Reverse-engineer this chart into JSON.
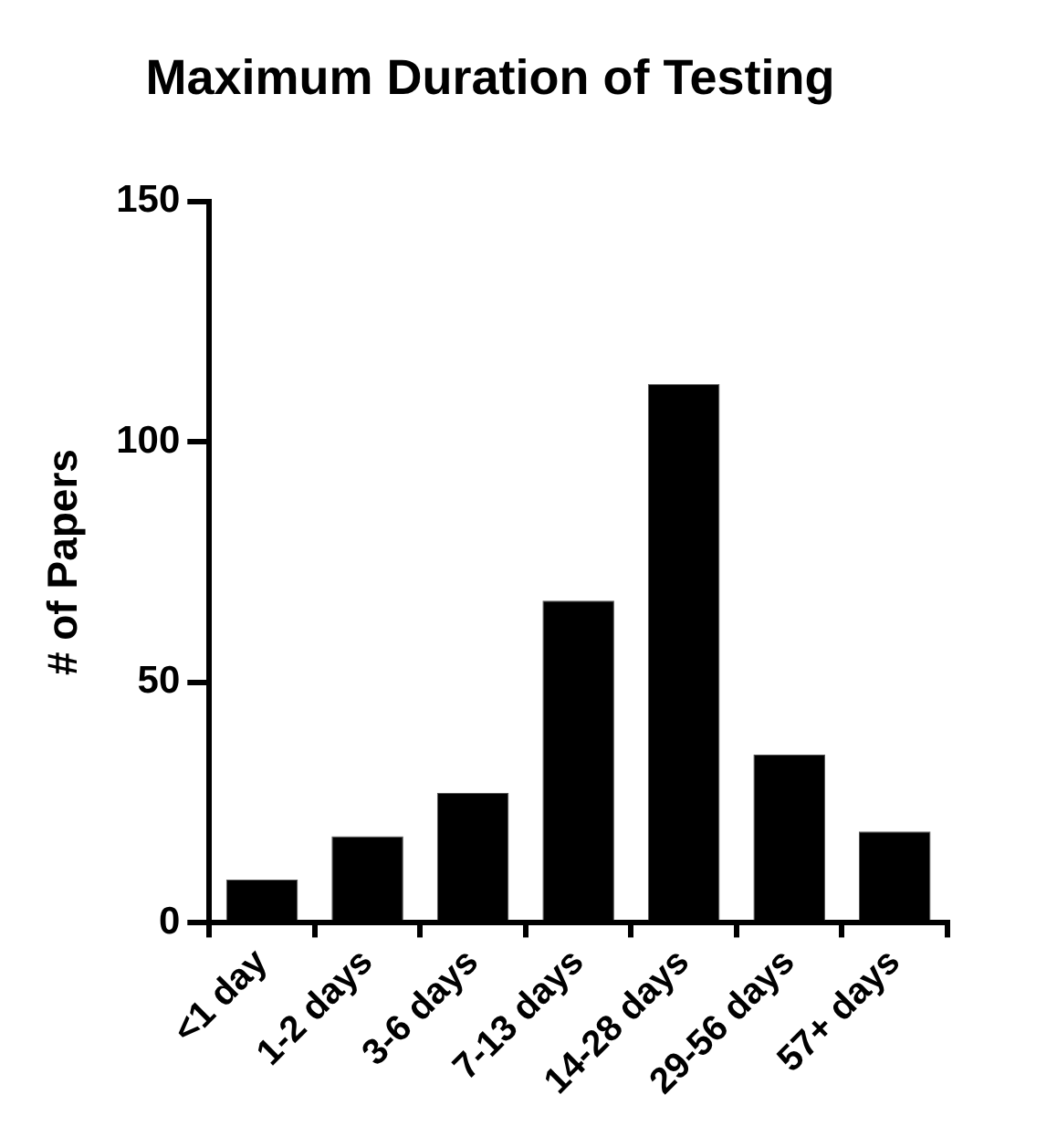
{
  "chart_data": {
    "type": "bar",
    "title": "Maximum Duration of Testing",
    "ylabel": "# of Papers",
    "categories": [
      "<1 day",
      "1-2 days",
      "3-6 days",
      "7-13 days",
      "14-28 days",
      "29-56 days",
      "57+ days"
    ],
    "values": [
      9,
      18,
      27,
      67,
      112,
      35,
      19
    ],
    "color": "#000000",
    "ylim": [
      0,
      150
    ],
    "yticks": [
      0,
      50,
      100,
      150
    ],
    "grid": false,
    "legend": false
  }
}
